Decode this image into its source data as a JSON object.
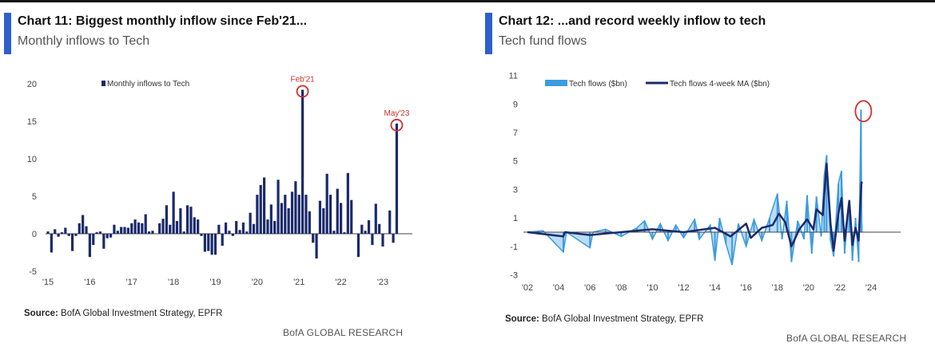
{
  "colors": {
    "navy": "#1b2a6b",
    "light_blue": "#3d9be0",
    "red": "#d0302a",
    "accent": "#2f5fcc"
  },
  "chart_data": [
    {
      "type": "bar",
      "title": "Chart 11: Biggest monthly inflow since Feb'21...",
      "subtitle": "Monthly inflows to Tech",
      "legend": [
        "Monthly inflows to Tech"
      ],
      "legend_placement": "top-left",
      "ylim": [
        -5,
        20
      ],
      "yticks": [
        -5,
        0,
        5,
        10,
        15,
        20
      ],
      "xtick_labels": [
        "'15",
        "'16",
        "'17",
        "'18",
        "'19",
        "'20",
        "'21",
        "'22",
        "'23"
      ],
      "start": "Jan 2015",
      "values": [
        0.3,
        -2.5,
        0.6,
        -0.4,
        0.2,
        0.8,
        -0.3,
        -2.3,
        -0.3,
        1.4,
        2.5,
        1.0,
        -3.1,
        -1.5,
        0.2,
        0.3,
        -2.0,
        -0.6,
        -0.5,
        1.2,
        0.4,
        0.9,
        0.9,
        0.8,
        1.4,
        1.9,
        1.5,
        1.4,
        2.6,
        0.3,
        0.4,
        0,
        1.4,
        2.0,
        3.8,
        1.2,
        5.6,
        1.7,
        3.4,
        0.3,
        3.8,
        3.6,
        2.2,
        1.9,
        -0.3,
        -2.4,
        -2.3,
        -2.8,
        -2.8,
        1.2,
        -1.6,
        1.5,
        0.4,
        -0.3,
        1.7,
        0.5,
        1.5,
        0.3,
        2.8,
        1.3,
        5.2,
        6.5,
        7.5,
        1.9,
        3.9,
        1.7,
        7.2,
        4.1,
        5.2,
        3.4,
        5.6,
        7.0,
        5.2,
        19.2,
        5.2,
        3.0,
        -1.2,
        -3.3,
        4.4,
        3.4,
        8.0,
        5.2,
        0.4,
        6.0,
        4.1,
        0.2,
        8.1,
        4.5,
        0,
        -3.1,
        1.2,
        0.4,
        1.8,
        -1.5,
        4.0,
        1.3,
        -1.7,
        0,
        3.1,
        -1.2,
        14.7
      ],
      "annotations": [
        {
          "label": "Feb'21",
          "index": 73
        },
        {
          "label": "May'23",
          "index": 100
        }
      ],
      "source_label": "Source:",
      "source": "BofA Global Investment Strategy, EPFR",
      "brand": "BofA GLOBAL RESEARCH"
    },
    {
      "type": "line",
      "title": "Chart 12: ...and record weekly inflow to tech",
      "subtitle": "Tech fund flows",
      "legend": [
        "Tech flows ($bn)",
        "Tech flows 4-week MA ($bn)"
      ],
      "legend_placement": "top-left",
      "ylim": [
        -3,
        11
      ],
      "yticks": [
        -3,
        -1,
        1,
        3,
        5,
        7,
        9,
        11
      ],
      "xlim": [
        2002,
        2025
      ],
      "xticks": [
        2002,
        2004,
        2006,
        2008,
        2010,
        2012,
        2014,
        2016,
        2018,
        2020,
        2022,
        2024
      ],
      "xtick_labels": [
        "'02",
        "'04",
        "'06",
        "'08",
        "'10",
        "'12",
        "'14",
        "'16",
        "'18",
        "'20",
        "'22",
        "'24"
      ],
      "series": [
        {
          "name": "Tech flows ($bn)",
          "points": [
            [
              2002.0,
              0
            ],
            [
              2003.0,
              0.1
            ],
            [
              2004.3,
              -1.4
            ],
            [
              2004.5,
              0
            ],
            [
              2006.0,
              -1.1
            ],
            [
              2006.2,
              0
            ],
            [
              2007.0,
              0.2
            ],
            [
              2008.0,
              -0.3
            ],
            [
              2009.0,
              0.3
            ],
            [
              2009.5,
              0.8
            ],
            [
              2010.0,
              -0.5
            ],
            [
              2010.5,
              0.6
            ],
            [
              2011.0,
              -0.6
            ],
            [
              2011.5,
              0.5
            ],
            [
              2012.0,
              -0.4
            ],
            [
              2012.7,
              0.9
            ],
            [
              2013.0,
              -0.5
            ],
            [
              2013.7,
              0.5
            ],
            [
              2014.0,
              -2.0
            ],
            [
              2014.3,
              1.0
            ],
            [
              2014.7,
              -0.8
            ],
            [
              2015.1,
              -2.3
            ],
            [
              2015.5,
              0.6
            ],
            [
              2016.0,
              -1.0
            ],
            [
              2016.5,
              0.9
            ],
            [
              2017.0,
              -0.6
            ],
            [
              2017.5,
              1.0
            ],
            [
              2018.0,
              2.7
            ],
            [
              2018.3,
              -0.5
            ],
            [
              2018.6,
              2.2
            ],
            [
              2018.9,
              -2.1
            ],
            [
              2019.3,
              0.8
            ],
            [
              2019.7,
              -0.5
            ],
            [
              2019.9,
              2.6
            ],
            [
              2020.2,
              -1.5
            ],
            [
              2020.5,
              2.5
            ],
            [
              2020.8,
              -0.3
            ],
            [
              2021.0,
              4.0
            ],
            [
              2021.15,
              5.4
            ],
            [
              2021.4,
              -0.6
            ],
            [
              2021.6,
              -1.7
            ],
            [
              2021.9,
              3.4
            ],
            [
              2022.1,
              4.3
            ],
            [
              2022.3,
              -1.5
            ],
            [
              2022.6,
              2.2
            ],
            [
              2022.8,
              -2.0
            ],
            [
              2023.0,
              1.0
            ],
            [
              2023.2,
              -2.1
            ],
            [
              2023.35,
              8.6
            ],
            [
              2023.4,
              0.5
            ]
          ]
        },
        {
          "name": "Tech flows 4-week MA ($bn)",
          "points": [
            [
              2002.0,
              0
            ],
            [
              2004.3,
              -0.3
            ],
            [
              2004.4,
              0
            ],
            [
              2006.0,
              -0.2
            ],
            [
              2008.0,
              0
            ],
            [
              2010.0,
              0.2
            ],
            [
              2012.0,
              0
            ],
            [
              2014.0,
              0.3
            ],
            [
              2015.0,
              -0.3
            ],
            [
              2016.0,
              0.6
            ],
            [
              2016.3,
              -0.4
            ],
            [
              2017.0,
              0.3
            ],
            [
              2017.7,
              0.5
            ],
            [
              2018.1,
              1.3
            ],
            [
              2018.5,
              0.7
            ],
            [
              2018.9,
              -1.0
            ],
            [
              2019.4,
              0.2
            ],
            [
              2019.9,
              0.9
            ],
            [
              2020.3,
              0.2
            ],
            [
              2020.5,
              1.6
            ],
            [
              2020.9,
              1.2
            ],
            [
              2021.15,
              4.8
            ],
            [
              2021.4,
              0.6
            ],
            [
              2021.6,
              -1.3
            ],
            [
              2021.9,
              1.3
            ],
            [
              2022.1,
              2.4
            ],
            [
              2022.3,
              -0.6
            ],
            [
              2022.6,
              2.2
            ],
            [
              2022.8,
              -0.9
            ],
            [
              2023.0,
              0.3
            ],
            [
              2023.2,
              -0.6
            ],
            [
              2023.3,
              1.8
            ],
            [
              2023.38,
              3.5
            ],
            [
              2023.42,
              3.4
            ]
          ]
        }
      ],
      "annotations": [
        {
          "type": "circle",
          "x": 2023.35,
          "y": 8.6
        }
      ],
      "source_label": "Source:",
      "source": "BofA Global Investment Strategy, EPFR",
      "brand": "BofA GLOBAL RESEARCH"
    }
  ]
}
